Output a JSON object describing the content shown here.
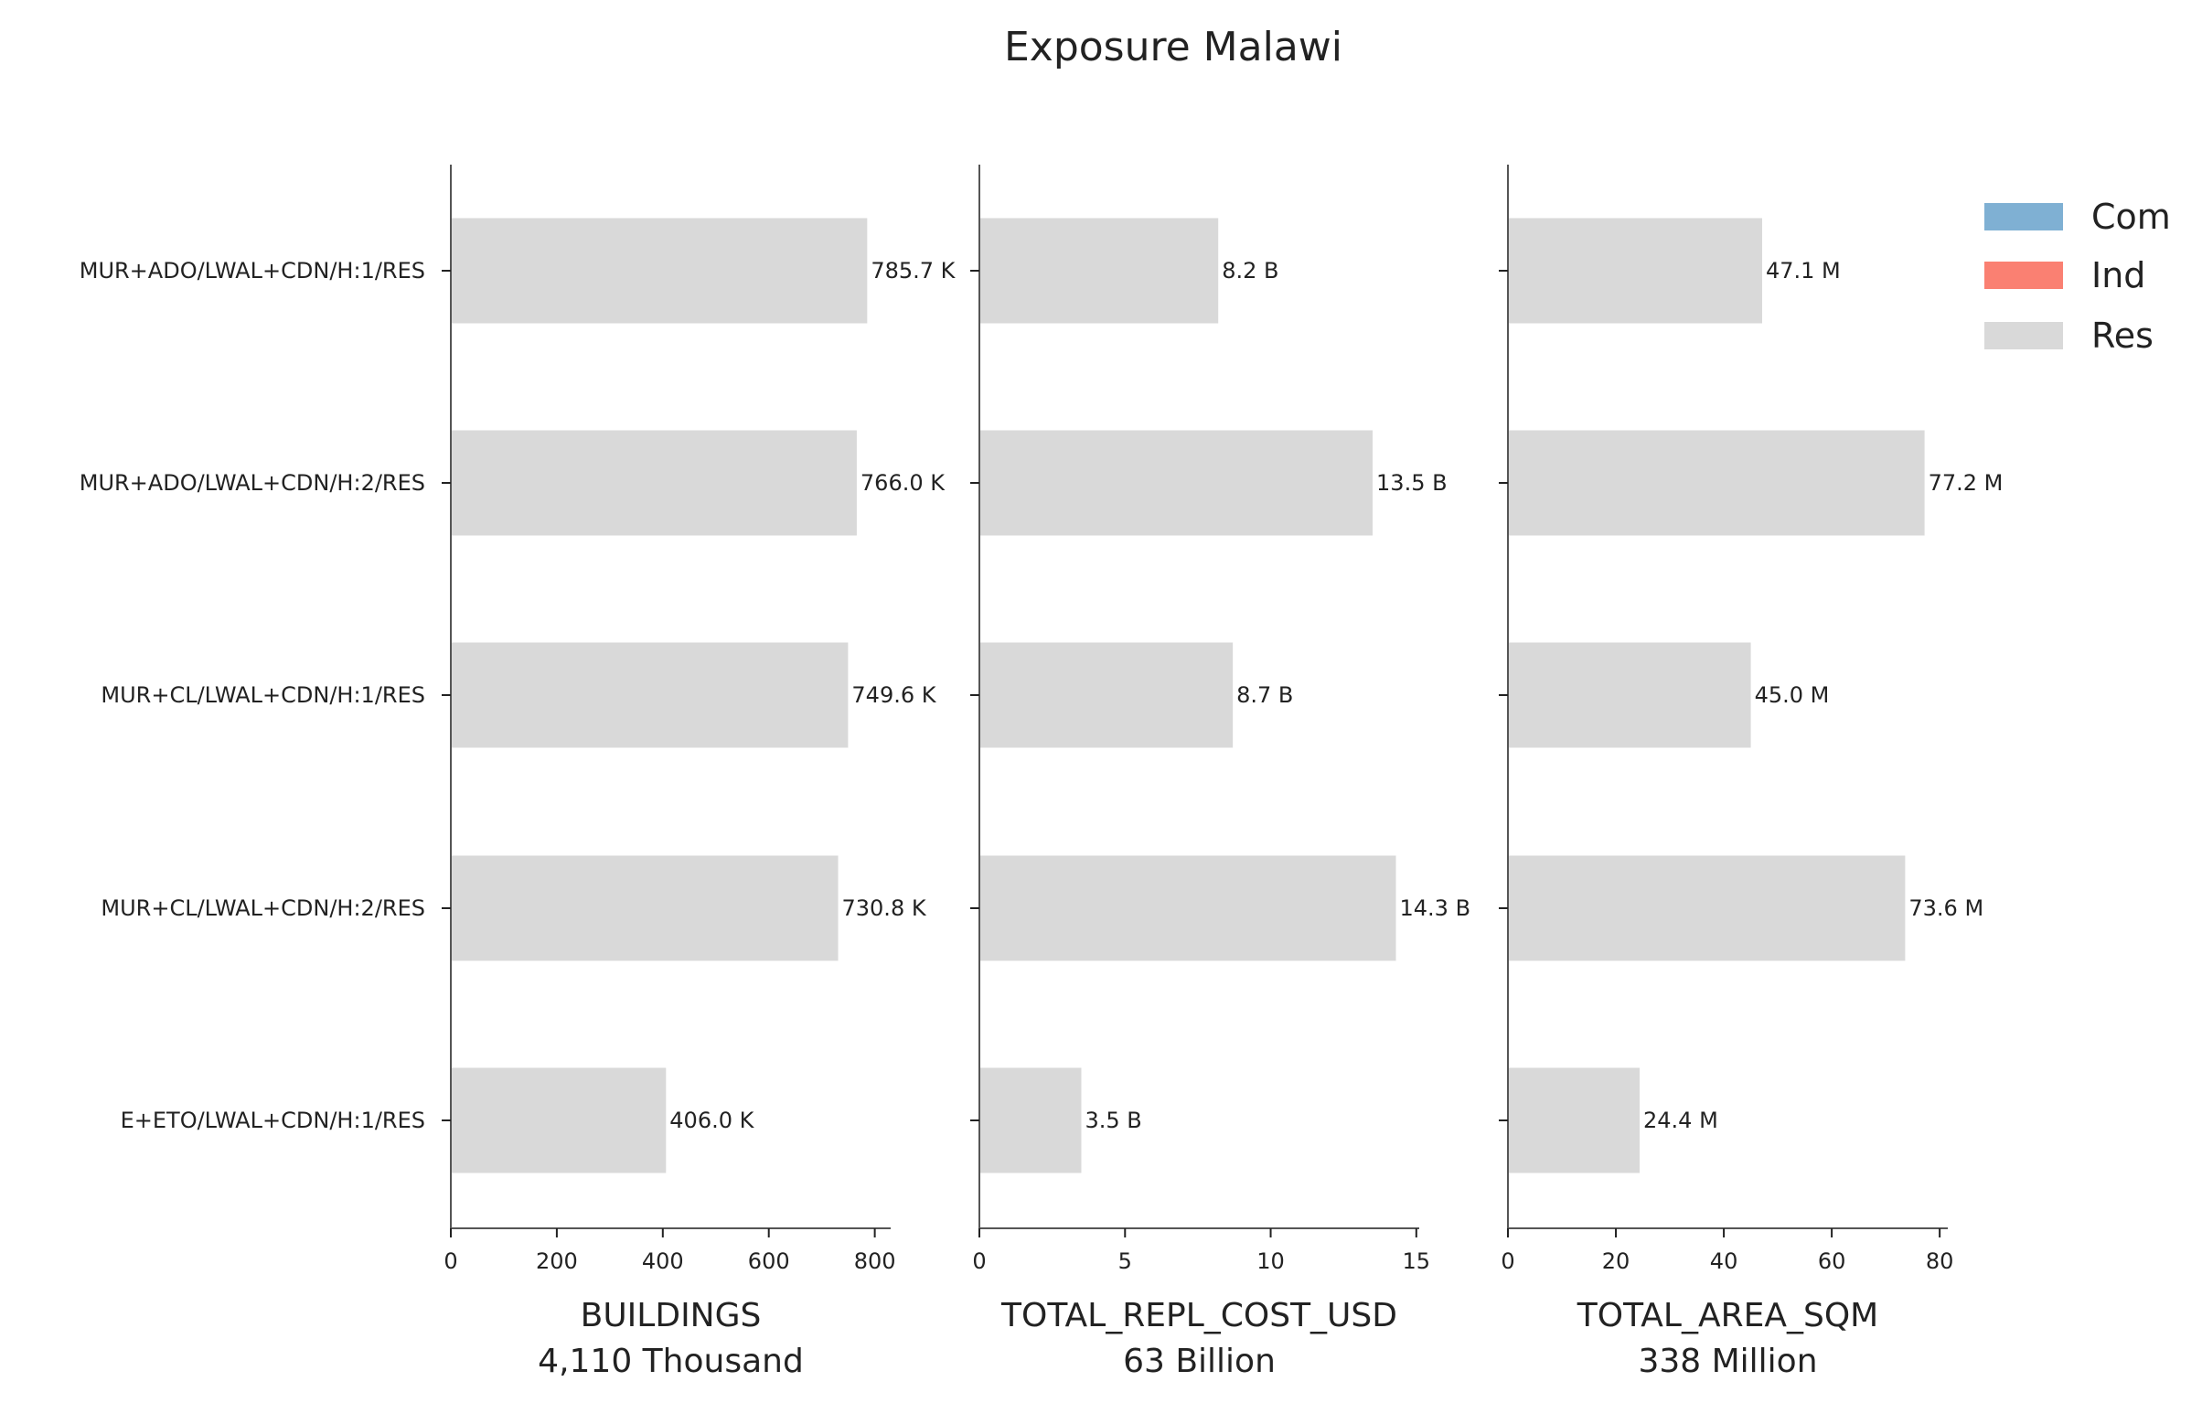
{
  "chart_data": {
    "type": "bar",
    "orientation": "horizontal",
    "title": "Exposure Malawi",
    "categories": [
      "MUR+ADO/LWAL+CDN/H:1/RES",
      "MUR+ADO/LWAL+CDN/H:2/RES",
      "MUR+CL/LWAL+CDN/H:1/RES",
      "MUR+CL/LWAL+CDN/H:2/RES",
      "E+ETO/LWAL+CDN/H:1/RES"
    ],
    "legend": {
      "position": "top-right",
      "entries": [
        {
          "name": "Com",
          "color": "#7fb0d3"
        },
        {
          "name": "Ind",
          "color": "#fa8072"
        },
        {
          "name": "Res",
          "color": "#d9d9d9"
        }
      ]
    },
    "panels": [
      {
        "xlabel": "BUILDINGS",
        "subtitle": "4,110 Thousand",
        "xlim": [
          0,
          830
        ],
        "xticks": [
          0,
          200,
          400,
          600,
          800
        ],
        "series": [
          {
            "name": "Res",
            "color": "#d9d9d9",
            "values": [
              785.7,
              766.0,
              749.6,
              730.8,
              406.0
            ]
          }
        ],
        "value_labels": [
          "785.7 K",
          "766.0 K",
          "749.6 K",
          "730.8 K",
          "406.0 K"
        ]
      },
      {
        "xlabel": "TOTAL_REPL_COST_USD",
        "subtitle": "63 Billion",
        "xlim": [
          0,
          15.1
        ],
        "xticks": [
          0,
          5,
          10,
          15
        ],
        "series": [
          {
            "name": "Res",
            "color": "#d9d9d9",
            "values": [
              8.2,
              13.5,
              8.7,
              14.3,
              3.5
            ]
          }
        ],
        "value_labels": [
          "8.2 B",
          "13.5 B",
          "8.7 B",
          "14.3 B",
          "3.5 B"
        ]
      },
      {
        "xlabel": "TOTAL_AREA_SQM",
        "subtitle": "338 Million",
        "xlim": [
          0,
          81.5
        ],
        "xticks": [
          0,
          20,
          40,
          60,
          80
        ],
        "series": [
          {
            "name": "Res",
            "color": "#d9d9d9",
            "values": [
              47.1,
              77.2,
              45.0,
              73.6,
              24.4
            ]
          }
        ],
        "value_labels": [
          "47.1 M",
          "77.2 M",
          "45.0 M",
          "73.6 M",
          "24.4 M"
        ]
      }
    ]
  }
}
